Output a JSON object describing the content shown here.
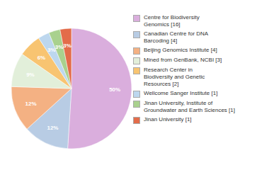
{
  "chart_data": {
    "type": "pie",
    "labels": [
      "Centre for Biodiversity\nGenomics [16]",
      "Canadian Centre for DNA\nBarcoding [4]",
      "Beijing Genomics Institute [4]",
      "Mined from GenBank, NCBI [3]",
      "Research Center in\nBiodiversity and Genetic\nResources [2]",
      "Wellcome Sanger Institute [1]",
      "Jinan University, Institute of\nGroundwater and Earth Sciences [1]",
      "Jinan University [1]"
    ],
    "values": [
      50,
      12,
      12,
      9,
      6,
      3,
      3,
      3
    ],
    "value_labels": [
      "50%",
      "12%",
      "12%",
      "9%",
      "6%",
      "3%",
      "3%",
      "3%"
    ],
    "colors": [
      "#daaedd",
      "#b8cce4",
      "#f4b183",
      "#e2efda",
      "#f8c471",
      "#bdd7ee",
      "#a9d18e",
      "#e36c4a"
    ],
    "data_labels": true,
    "legend": "right"
  }
}
